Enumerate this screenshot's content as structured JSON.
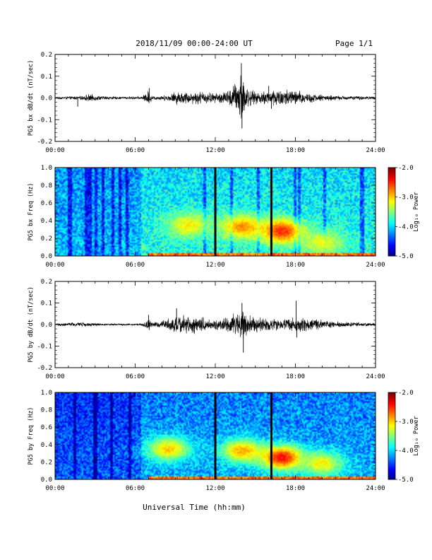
{
  "header": {
    "title": "2018/11/09   00:00-24:00 UT",
    "page": "Page 1/1"
  },
  "xlabel": "Universal Time (hh:mm)",
  "chart_data": [
    {
      "type": "line",
      "name": "bx-waveform",
      "ylabel": "PG5 bx dB/dt (nT/sec)",
      "xlim": [
        0,
        24
      ],
      "ylim": [
        -0.2,
        0.2
      ],
      "y_ticks": [
        "0.2",
        "0.1",
        "0.0",
        "-0.1",
        "-0.2"
      ],
      "y_tick_values": [
        0.2,
        0.1,
        0.0,
        -0.1,
        -0.2
      ],
      "x_ticks": [
        "00:00",
        "06:00",
        "12:00",
        "18:00",
        "24:00"
      ],
      "envelope": [
        {
          "x": 0,
          "y": 0.005
        },
        {
          "x": 1.0,
          "y": 0.008
        },
        {
          "x": 2.0,
          "y": 0.01
        },
        {
          "x": 2.5,
          "y": 0.02
        },
        {
          "x": 3.5,
          "y": 0.01
        },
        {
          "x": 5.0,
          "y": 0.006
        },
        {
          "x": 6.5,
          "y": 0.008
        },
        {
          "x": 7.0,
          "y": 0.04
        },
        {
          "x": 7.3,
          "y": 0.01
        },
        {
          "x": 8.5,
          "y": 0.015
        },
        {
          "x": 9.0,
          "y": 0.035
        },
        {
          "x": 10.0,
          "y": 0.03
        },
        {
          "x": 11.0,
          "y": 0.035
        },
        {
          "x": 12.0,
          "y": 0.025
        },
        {
          "x": 13.0,
          "y": 0.04
        },
        {
          "x": 13.6,
          "y": 0.09
        },
        {
          "x": 14.0,
          "y": 0.16
        },
        {
          "x": 14.3,
          "y": 0.06
        },
        {
          "x": 15.0,
          "y": 0.03
        },
        {
          "x": 16.0,
          "y": 0.04
        },
        {
          "x": 16.5,
          "y": 0.05
        },
        {
          "x": 17.5,
          "y": 0.045
        },
        {
          "x": 18.5,
          "y": 0.035
        },
        {
          "x": 19.5,
          "y": 0.02
        },
        {
          "x": 21.0,
          "y": 0.012
        },
        {
          "x": 22.5,
          "y": 0.01
        },
        {
          "x": 24.0,
          "y": 0.008
        }
      ],
      "spikes": [
        {
          "x": 1.7,
          "y": -0.04
        },
        {
          "x": 7.05,
          "y": 0.045
        },
        {
          "x": 13.95,
          "y": 0.16
        },
        {
          "x": 14.0,
          "y": -0.14
        },
        {
          "x": 16.0,
          "y": 0.055
        },
        {
          "x": 16.2,
          "y": -0.05
        }
      ]
    },
    {
      "type": "heatmap",
      "name": "bx-spectrogram",
      "ylabel": "PG5 bx Freq (Hz)",
      "xlim": [
        0,
        24
      ],
      "ylim": [
        0.0,
        1.0
      ],
      "y_ticks": [
        "1.0",
        "0.8",
        "0.6",
        "0.4",
        "0.2",
        "0.0"
      ],
      "y_tick_values": [
        1.0,
        0.8,
        0.6,
        0.4,
        0.2,
        0.0
      ],
      "x_ticks": [
        "00:00",
        "06:00",
        "12:00",
        "18:00",
        "24:00"
      ],
      "colorbar_label": "Log₁₀ Power",
      "colorbar_ticks": [
        "-2.0",
        "-3.0",
        "-4.0",
        "-5.0"
      ],
      "colorbar_values": [
        -2.0,
        -3.0,
        -4.0,
        -5.0
      ],
      "data_gaps": [
        12.0,
        16.2
      ],
      "features": [
        {
          "x": 10.0,
          "y": 0.35,
          "value": -3.1
        },
        {
          "x": 14.0,
          "y": 0.33,
          "value": -2.8
        },
        {
          "x": 17.0,
          "y": 0.28,
          "value": -2.5
        },
        {
          "x": 20.0,
          "y": 0.15,
          "value": -3.2
        }
      ]
    },
    {
      "type": "line",
      "name": "by-waveform",
      "ylabel": "PG5 by dB/dt (nT/sec)",
      "xlim": [
        0,
        24
      ],
      "ylim": [
        -0.2,
        0.2
      ],
      "y_ticks": [
        "0.2",
        "0.1",
        "0.0",
        "-0.1",
        "-0.2"
      ],
      "y_tick_values": [
        0.2,
        0.1,
        0.0,
        -0.1,
        -0.2
      ],
      "x_ticks": [
        "00:00",
        "06:00",
        "12:00",
        "18:00",
        "24:00"
      ],
      "envelope": [
        {
          "x": 0,
          "y": 0.006
        },
        {
          "x": 1.0,
          "y": 0.01
        },
        {
          "x": 2.0,
          "y": 0.012
        },
        {
          "x": 3.5,
          "y": 0.006
        },
        {
          "x": 5.0,
          "y": 0.005
        },
        {
          "x": 6.5,
          "y": 0.006
        },
        {
          "x": 7.0,
          "y": 0.03
        },
        {
          "x": 7.3,
          "y": 0.01
        },
        {
          "x": 8.0,
          "y": 0.02
        },
        {
          "x": 9.0,
          "y": 0.045
        },
        {
          "x": 10.0,
          "y": 0.05
        },
        {
          "x": 11.0,
          "y": 0.04
        },
        {
          "x": 12.0,
          "y": 0.025
        },
        {
          "x": 13.0,
          "y": 0.04
        },
        {
          "x": 13.6,
          "y": 0.07
        },
        {
          "x": 14.0,
          "y": 0.09
        },
        {
          "x": 14.4,
          "y": 0.05
        },
        {
          "x": 15.0,
          "y": 0.04
        },
        {
          "x": 16.0,
          "y": 0.035
        },
        {
          "x": 17.0,
          "y": 0.03
        },
        {
          "x": 18.0,
          "y": 0.04
        },
        {
          "x": 19.0,
          "y": 0.03
        },
        {
          "x": 20.5,
          "y": 0.02
        },
        {
          "x": 22.0,
          "y": 0.012
        },
        {
          "x": 24.0,
          "y": 0.008
        }
      ],
      "spikes": [
        {
          "x": 7.0,
          "y": 0.045
        },
        {
          "x": 7.05,
          "y": -0.025
        },
        {
          "x": 9.1,
          "y": 0.075
        },
        {
          "x": 14.0,
          "y": 0.1
        },
        {
          "x": 14.1,
          "y": -0.13
        },
        {
          "x": 18.05,
          "y": 0.11
        },
        {
          "x": 18.1,
          "y": -0.06
        }
      ]
    },
    {
      "type": "heatmap",
      "name": "by-spectrogram",
      "ylabel": "PG5 by Freq (Hz)",
      "xlim": [
        0,
        24
      ],
      "ylim": [
        0.0,
        1.0
      ],
      "y_ticks": [
        "1.0",
        "0.8",
        "0.6",
        "0.4",
        "0.2",
        "0.0"
      ],
      "y_tick_values": [
        1.0,
        0.8,
        0.6,
        0.4,
        0.2,
        0.0
      ],
      "x_ticks": [
        "00:00",
        "06:00",
        "12:00",
        "18:00",
        "24:00"
      ],
      "colorbar_label": "Log₁₀ Power",
      "colorbar_ticks": [
        "-2.0",
        "-3.0",
        "-4.0",
        "-5.0"
      ],
      "colorbar_values": [
        -2.0,
        -3.0,
        -4.0,
        -5.0
      ],
      "data_gaps": [
        12.0,
        16.2
      ],
      "features": [
        {
          "x": 8.5,
          "y": 0.35,
          "value": -3.0
        },
        {
          "x": 14.0,
          "y": 0.33,
          "value": -2.9
        },
        {
          "x": 17.0,
          "y": 0.25,
          "value": -2.4
        },
        {
          "x": 20.0,
          "y": 0.18,
          "value": -3.1
        }
      ]
    }
  ]
}
